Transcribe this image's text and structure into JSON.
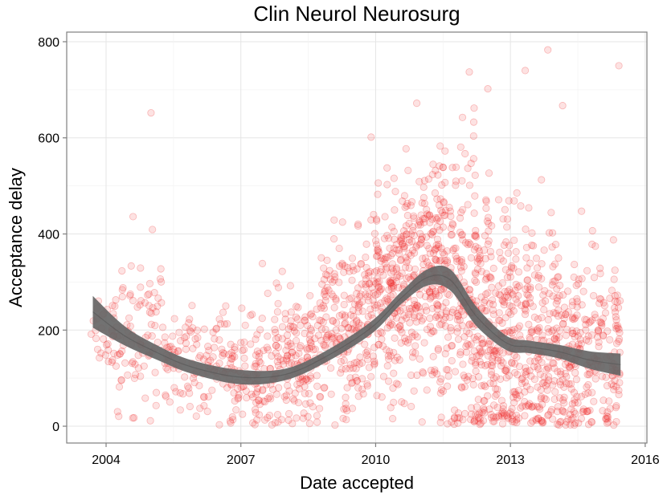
{
  "chart_data": {
    "type": "scatter",
    "title": "Clin Neurol Neurosurg",
    "xlabel": "Date accepted",
    "ylabel": "Acceptance delay",
    "x_ticks": [
      "2004",
      "2007",
      "2010",
      "2013",
      "2016"
    ],
    "y_ticks": [
      "0",
      "200",
      "400",
      "600",
      "800"
    ],
    "xlim": [
      "2003-02-15",
      "2016-01-15"
    ],
    "ylim": [
      -35,
      820
    ],
    "grid": true,
    "point_color": "#ee2222",
    "band_color": "#666666",
    "smooth": {
      "x": [
        "2003-09-15",
        "2004-06-01",
        "2005-03-01",
        "2005-12-01",
        "2007-01-01",
        "2008-01-01",
        "2008-12-01",
        "2009-12-01",
        "2010-08-01",
        "2011-03-01",
        "2011-09-01",
        "2012-04-01",
        "2012-12-01",
        "2013-06-01",
        "2014-02-01",
        "2014-10-01",
        "2015-06-15"
      ],
      "y": [
        238,
        188,
        152,
        123,
        102,
        108,
        146,
        206,
        268,
        310,
        304,
        228,
        173,
        165,
        155,
        138,
        128
      ],
      "ci_low": [
        205,
        168,
        137,
        109,
        87,
        96,
        134,
        193,
        255,
        293,
        282,
        208,
        158,
        152,
        141,
        120,
        105
      ],
      "ci_high": [
        271,
        208,
        167,
        137,
        117,
        120,
        158,
        219,
        281,
        327,
        326,
        248,
        188,
        178,
        169,
        156,
        151
      ]
    },
    "outliers": [
      {
        "x": "2005-01-01",
        "y": 652
      },
      {
        "x": "2012-02-01",
        "y": 737
      },
      {
        "x": "2013-05-01",
        "y": 740
      },
      {
        "x": "2013-11-01",
        "y": 783
      },
      {
        "x": "2015-06-01",
        "y": 750
      },
      {
        "x": "2010-12-01",
        "y": 672
      },
      {
        "x": "2012-07-01",
        "y": 702
      },
      {
        "x": "2014-03-01",
        "y": 667
      }
    ],
    "point_groups": [
      {
        "start": "2003-09-01",
        "end": "2004-04-01",
        "n": 35,
        "mean": 205,
        "sd": 45
      },
      {
        "start": "2004-04-01",
        "end": "2005-05-01",
        "n": 90,
        "mean": 185,
        "sd": 95
      },
      {
        "start": "2005-05-01",
        "end": "2006-10-01",
        "n": 110,
        "mean": 135,
        "sd": 60
      },
      {
        "start": "2006-10-01",
        "end": "2007-10-01",
        "n": 110,
        "mean": 110,
        "sd": 60
      },
      {
        "start": "2007-10-01",
        "end": "2008-10-01",
        "n": 150,
        "mean": 135,
        "sd": 70
      },
      {
        "start": "2008-10-01",
        "end": "2009-10-01",
        "n": 180,
        "mean": 200,
        "sd": 90
      },
      {
        "start": "2009-10-01",
        "end": "2010-08-01",
        "n": 200,
        "mean": 270,
        "sd": 105
      },
      {
        "start": "2010-08-01",
        "end": "2011-06-01",
        "n": 230,
        "mean": 320,
        "sd": 110
      },
      {
        "start": "2011-06-01",
        "end": "2012-04-01",
        "n": 240,
        "mean": 280,
        "sd": 160
      },
      {
        "start": "2012-04-01",
        "end": "2013-02-01",
        "n": 240,
        "mean": 190,
        "sd": 140
      },
      {
        "start": "2013-02-01",
        "end": "2014-02-01",
        "n": 230,
        "mean": 160,
        "sd": 130
      },
      {
        "start": "2014-02-01",
        "end": "2015-06-15",
        "n": 260,
        "mean": 140,
        "sd": 110
      }
    ]
  }
}
